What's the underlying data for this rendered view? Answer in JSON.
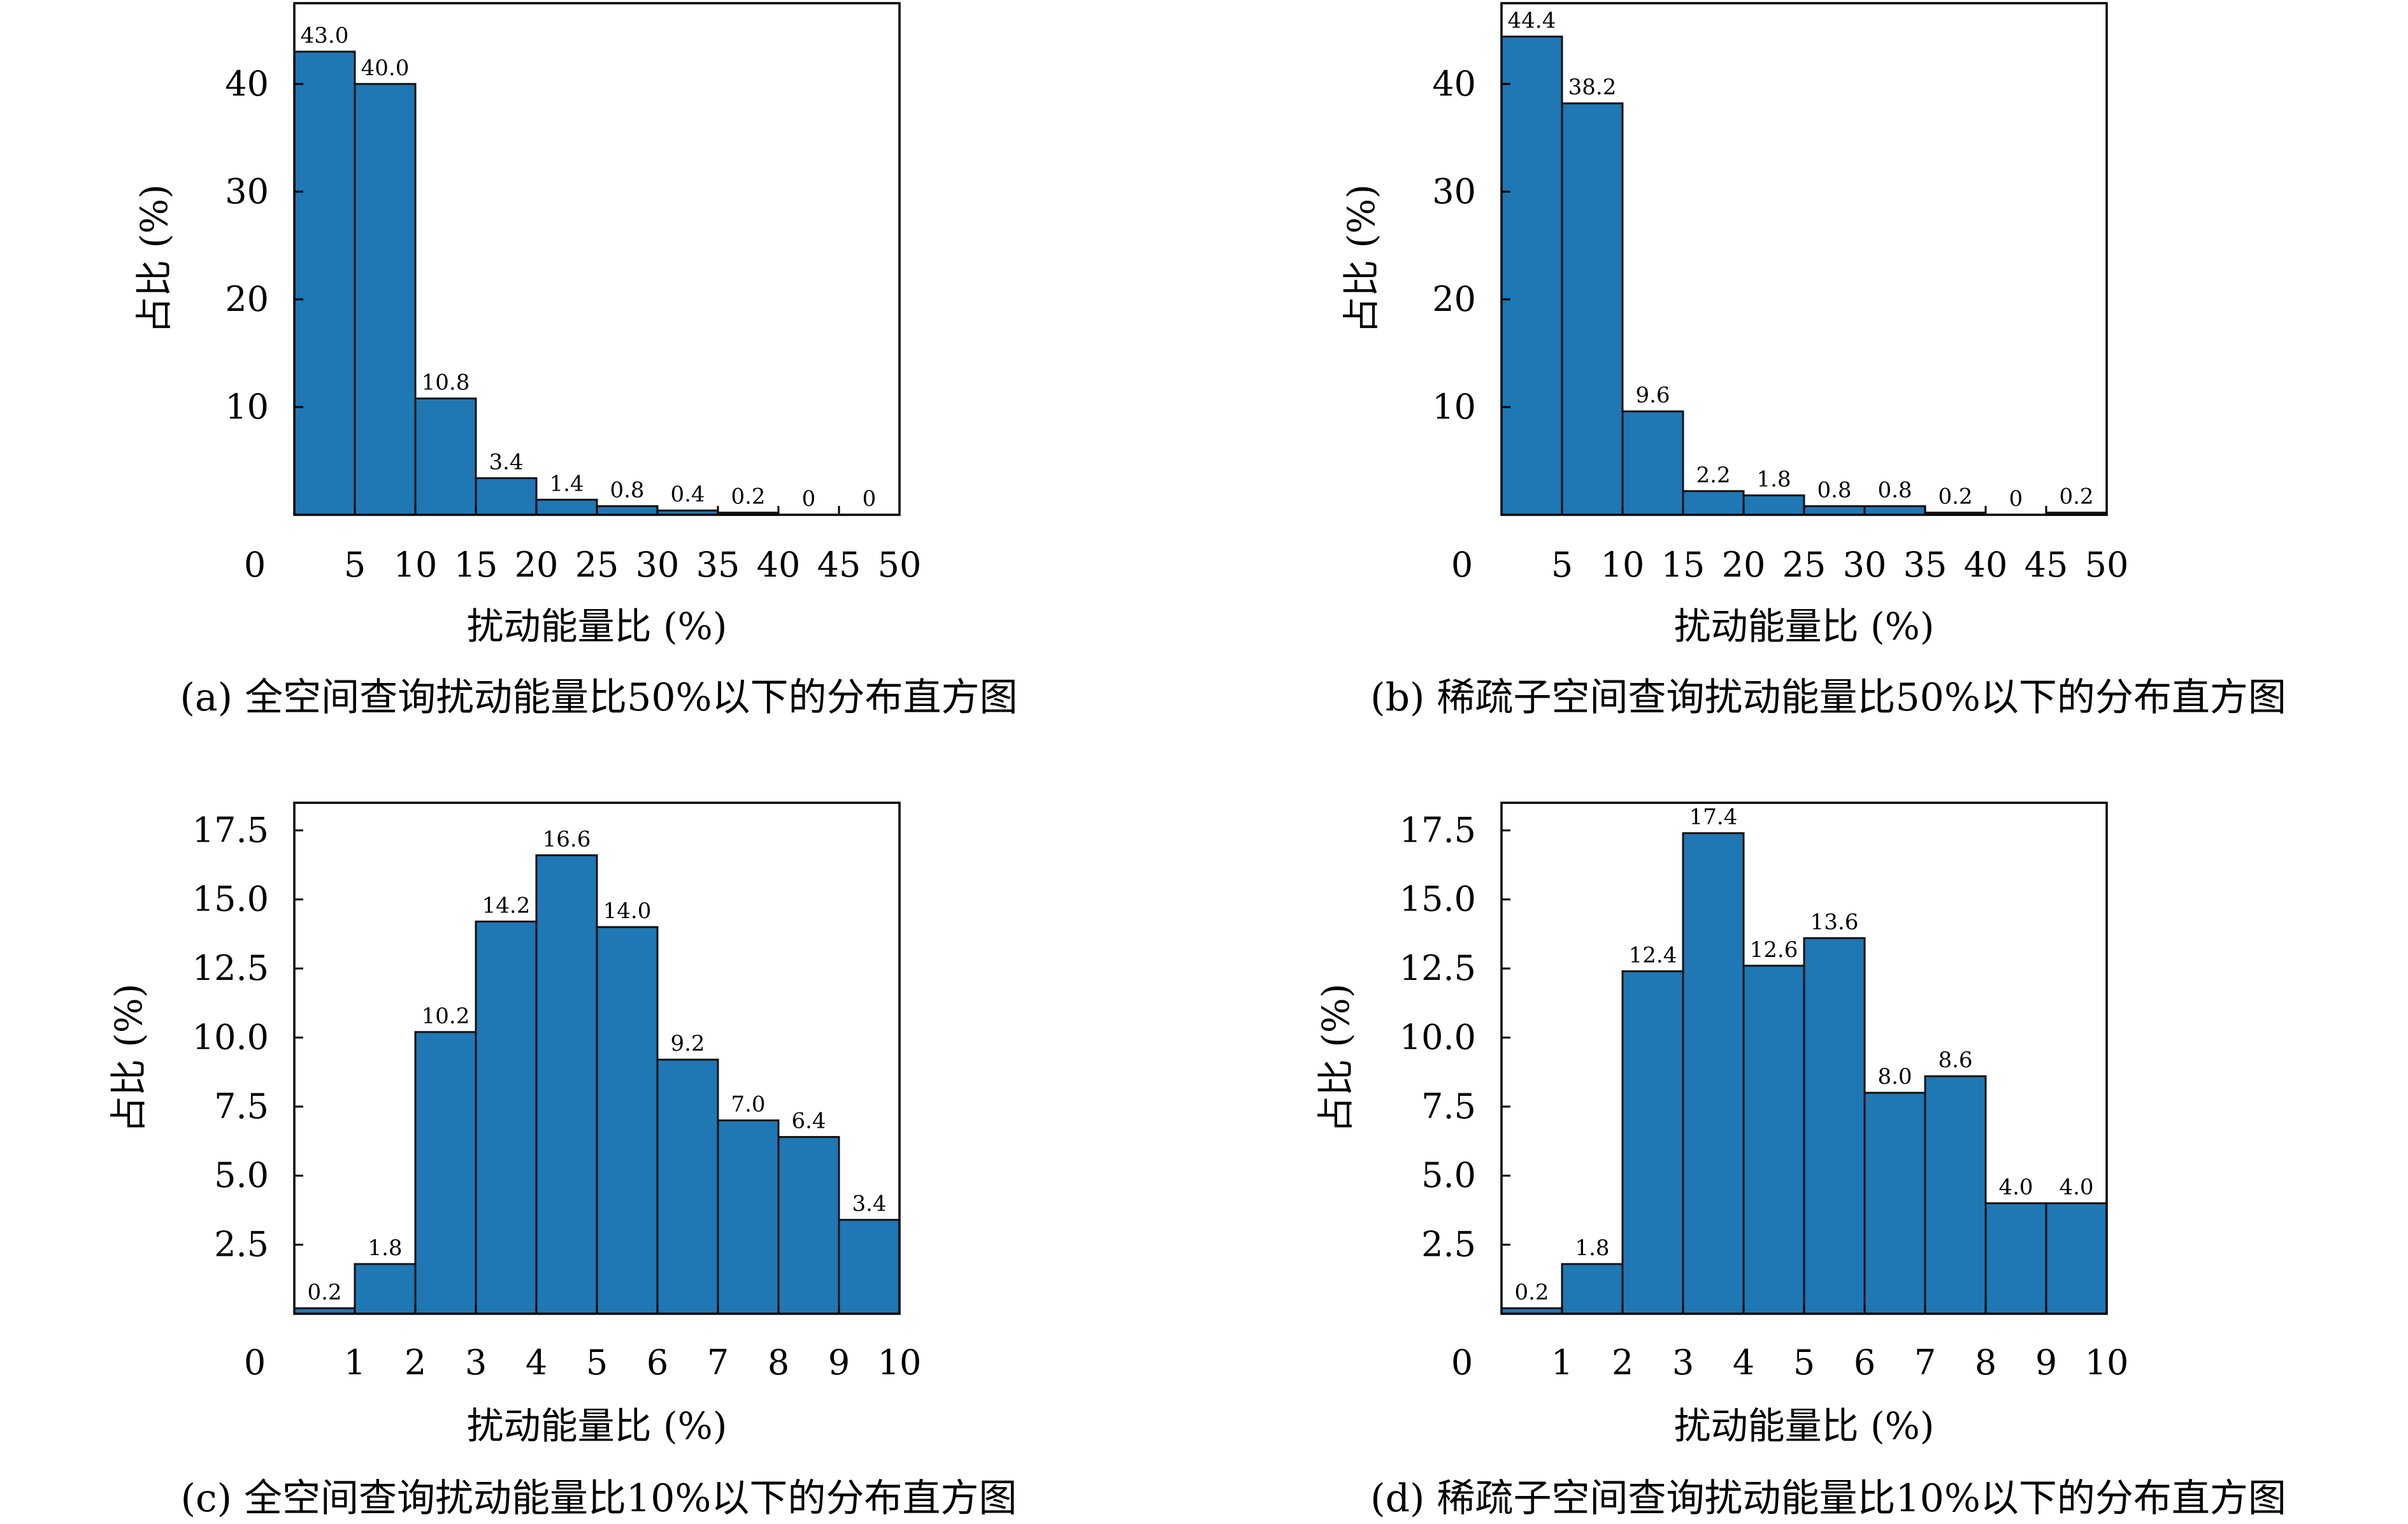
{
  "chart_data": [
    {
      "type": "bar",
      "caption": "(a) 全空间查询扰动能量比50%以下的分布直方图",
      "xlabel": "扰动能量比 (%)",
      "ylabel": "占比 (%)",
      "xlim": [
        0,
        50
      ],
      "ylim": [
        0,
        47.5
      ],
      "xticks": [
        0,
        5,
        10,
        15,
        20,
        25,
        30,
        35,
        40,
        45,
        50
      ],
      "yticks": [
        10,
        20,
        30,
        40
      ],
      "ytick_labels": [
        "10",
        "20",
        "30",
        "40"
      ],
      "bin_width": 5,
      "bin_edges": [
        0,
        5,
        10,
        15,
        20,
        25,
        30,
        35,
        40,
        45,
        50
      ],
      "values": [
        43.0,
        40.0,
        10.8,
        3.4,
        1.4,
        0.8,
        0.4,
        0.2,
        0,
        0
      ],
      "labels": [
        "43.0",
        "40.0",
        "10.8",
        "3.4",
        "1.4",
        "0.8",
        "0.4",
        "0.2",
        "0",
        "0"
      ],
      "color": "#1f77b4",
      "grid": false
    },
    {
      "type": "bar",
      "caption": "(b) 稀疏子空间查询扰动能量比50%以下的分布直方图",
      "xlabel": "扰动能量比 (%)",
      "ylabel": "占比 (%)",
      "xlim": [
        0,
        50
      ],
      "ylim": [
        0,
        47.5
      ],
      "xticks": [
        0,
        5,
        10,
        15,
        20,
        25,
        30,
        35,
        40,
        45,
        50
      ],
      "yticks": [
        10,
        20,
        30,
        40
      ],
      "ytick_labels": [
        "10",
        "20",
        "30",
        "40"
      ],
      "bin_width": 5,
      "bin_edges": [
        0,
        5,
        10,
        15,
        20,
        25,
        30,
        35,
        40,
        45,
        50
      ],
      "values": [
        44.4,
        38.2,
        9.6,
        2.2,
        1.8,
        0.8,
        0.8,
        0.2,
        0,
        0.2
      ],
      "labels": [
        "44.4",
        "38.2",
        "9.6",
        "2.2",
        "1.8",
        "0.8",
        "0.8",
        "0.2",
        "0",
        "0.2"
      ],
      "color": "#1f77b4",
      "grid": false
    },
    {
      "type": "bar",
      "caption": "(c) 全空间查询扰动能量比10%以下的分布直方图",
      "xlabel": "扰动能量比 (%)",
      "ylabel": "占比 (%)",
      "xlim": [
        0,
        10
      ],
      "ylim": [
        0,
        18.5
      ],
      "xticks": [
        0,
        1,
        2,
        3,
        4,
        5,
        6,
        7,
        8,
        9,
        10
      ],
      "yticks": [
        2.5,
        5.0,
        7.5,
        10.0,
        12.5,
        15.0,
        17.5
      ],
      "ytick_labels": [
        "2.5",
        "5.0",
        "7.5",
        "10.0",
        "12.5",
        "15.0",
        "17.5"
      ],
      "bin_width": 1,
      "bin_edges": [
        0,
        1,
        2,
        3,
        4,
        5,
        6,
        7,
        8,
        9,
        10
      ],
      "values": [
        0.2,
        1.8,
        10.2,
        14.2,
        16.6,
        14.0,
        9.2,
        7.0,
        6.4,
        3.4
      ],
      "labels": [
        "0.2",
        "1.8",
        "10.2",
        "14.2",
        "16.6",
        "14.0",
        "9.2",
        "7.0",
        "6.4",
        "3.4"
      ],
      "color": "#1f77b4",
      "grid": false
    },
    {
      "type": "bar",
      "caption": "(d) 稀疏子空间查询扰动能量比10%以下的分布直方图",
      "xlabel": "扰动能量比 (%)",
      "ylabel": "占比 (%)",
      "xlim": [
        0,
        10
      ],
      "ylim": [
        0,
        18.5
      ],
      "xticks": [
        0,
        1,
        2,
        3,
        4,
        5,
        6,
        7,
        8,
        9,
        10
      ],
      "yticks": [
        2.5,
        5.0,
        7.5,
        10.0,
        12.5,
        15.0,
        17.5
      ],
      "ytick_labels": [
        "2.5",
        "5.0",
        "7.5",
        "10.0",
        "12.5",
        "15.0",
        "17.5"
      ],
      "bin_width": 1,
      "bin_edges": [
        0,
        1,
        2,
        3,
        4,
        5,
        6,
        7,
        8,
        9,
        10
      ],
      "values": [
        0.2,
        1.8,
        12.4,
        17.4,
        12.6,
        13.6,
        8.0,
        8.6,
        4.0,
        4.0
      ],
      "labels": [
        "0.2",
        "1.8",
        "12.4",
        "17.4",
        "12.6",
        "13.6",
        "8.0",
        "8.6",
        "4.0",
        "4.0"
      ],
      "color": "#1f77b4",
      "grid": false
    }
  ]
}
